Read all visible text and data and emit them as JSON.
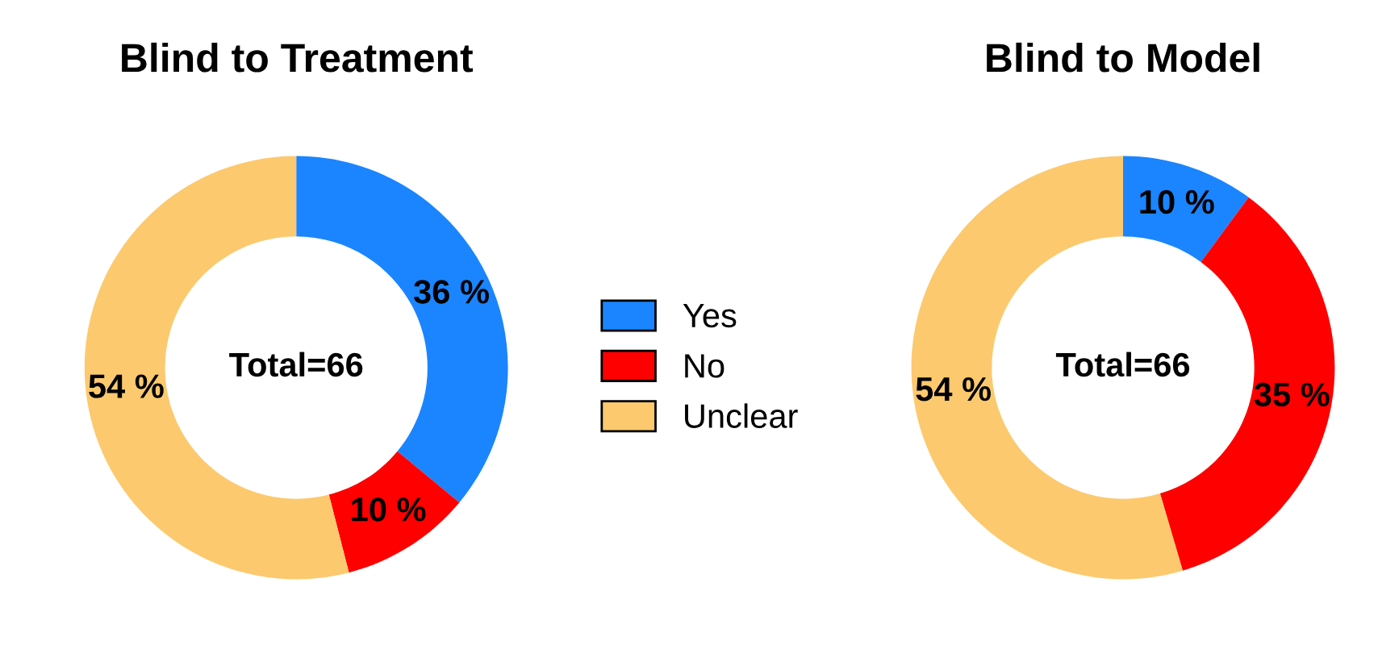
{
  "chart_data": [
    {
      "type": "donut",
      "title": "Blind to Treatment",
      "categories": [
        "Yes",
        "No",
        "Unclear"
      ],
      "values": [
        36,
        10,
        54
      ],
      "colors": [
        "#1a85ff",
        "#ff0000",
        "#fcc96e"
      ],
      "value_labels": [
        "36 %",
        "10 %",
        "54 %"
      ],
      "annotations": [
        "Total=66"
      ],
      "legend": "right"
    },
    {
      "type": "donut",
      "title": "Blind to Model",
      "categories": [
        null,
        null,
        null
      ],
      "values": [
        10,
        35,
        54
      ],
      "colors": [
        "#1a85ff",
        "#ff0000",
        "#fcc96e"
      ],
      "value_labels": [
        "10 %",
        "35 %",
        "54 %"
      ],
      "annotations": [
        "Total=66"
      ]
    }
  ]
}
